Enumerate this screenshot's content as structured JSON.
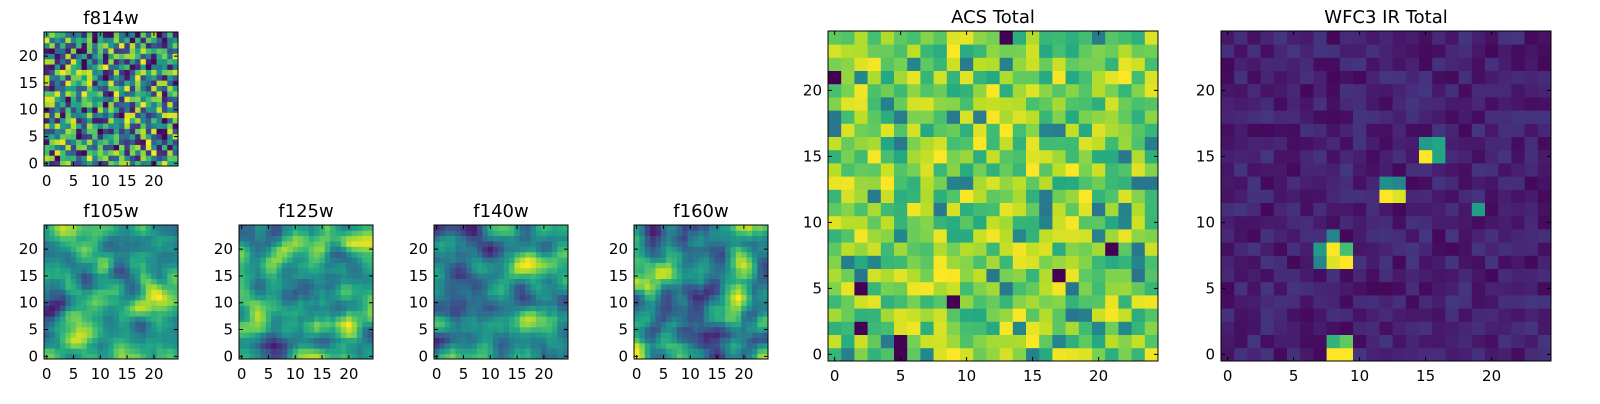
{
  "figure": {
    "panels": [
      {
        "key": "f814w",
        "title": "f814w",
        "type": "heatmap",
        "colormap": "viridis",
        "xticks": [
          "0",
          "5",
          "10",
          "15",
          "20"
        ],
        "yticks": [
          "0",
          "5",
          "10",
          "15",
          "20"
        ],
        "grid_size": 25,
        "value_range": [
          0,
          1
        ],
        "seed": 814,
        "style": "noise"
      },
      {
        "key": "f105w",
        "title": "f105w",
        "type": "heatmap",
        "colormap": "viridis",
        "xticks": [
          "0",
          "5",
          "10",
          "15",
          "20"
        ],
        "yticks": [
          "0",
          "5",
          "10",
          "15",
          "20"
        ],
        "grid_size": 25,
        "value_range": [
          0,
          1
        ],
        "seed": 105,
        "style": "smooth"
      },
      {
        "key": "f125w",
        "title": "f125w",
        "type": "heatmap",
        "colormap": "viridis",
        "xticks": [
          "0",
          "5",
          "10",
          "15",
          "20"
        ],
        "yticks": [
          "0",
          "5",
          "10",
          "15",
          "20"
        ],
        "grid_size": 25,
        "value_range": [
          0,
          1
        ],
        "seed": 125,
        "style": "smooth"
      },
      {
        "key": "f140w",
        "title": "f140w",
        "type": "heatmap",
        "colormap": "viridis",
        "xticks": [
          "0",
          "5",
          "10",
          "15",
          "20"
        ],
        "yticks": [
          "0",
          "5",
          "10",
          "15",
          "20"
        ],
        "grid_size": 25,
        "value_range": [
          0,
          1
        ],
        "seed": 140,
        "style": "smooth"
      },
      {
        "key": "f160w",
        "title": "f160w",
        "type": "heatmap",
        "colormap": "viridis",
        "xticks": [
          "0",
          "5",
          "10",
          "15",
          "20"
        ],
        "yticks": [
          "0",
          "5",
          "10",
          "15",
          "20"
        ],
        "grid_size": 25,
        "value_range": [
          0,
          1
        ],
        "seed": 160,
        "style": "smooth"
      },
      {
        "key": "acs_total",
        "title": "ACS Total",
        "type": "heatmap",
        "colormap": "viridis",
        "xticks": [
          "0",
          "5",
          "10",
          "15",
          "20"
        ],
        "yticks": [
          "0",
          "5",
          "10",
          "15",
          "20"
        ],
        "grid_size": 25,
        "value_range": [
          0,
          1
        ],
        "seed": 42,
        "style": "acs"
      },
      {
        "key": "wfc3_ir_total",
        "title": "WFC3 IR Total",
        "type": "heatmap",
        "colormap": "viridis",
        "xticks": [
          "0",
          "5",
          "10",
          "15",
          "20"
        ],
        "yticks": [
          "0",
          "5",
          "10",
          "15",
          "20"
        ],
        "grid_size": 25,
        "value_range": [
          0,
          1
        ],
        "seed": 7,
        "style": "sparse",
        "hot_pixels": [
          {
            "x": 8,
            "y": 0,
            "value": 1.0
          },
          {
            "x": 9,
            "y": 0,
            "value": 1.0
          },
          {
            "x": 8,
            "y": 1,
            "value": 0.65
          },
          {
            "x": 9,
            "y": 1,
            "value": 0.75
          },
          {
            "x": 7,
            "y": 7,
            "value": 0.45
          },
          {
            "x": 8,
            "y": 7,
            "value": 0.95
          },
          {
            "x": 9,
            "y": 7,
            "value": 1.0
          },
          {
            "x": 7,
            "y": 8,
            "value": 0.55
          },
          {
            "x": 8,
            "y": 8,
            "value": 1.0
          },
          {
            "x": 9,
            "y": 8,
            "value": 0.7
          },
          {
            "x": 8,
            "y": 9,
            "value": 0.45
          },
          {
            "x": 12,
            "y": 12,
            "value": 1.0
          },
          {
            "x": 13,
            "y": 12,
            "value": 0.95
          },
          {
            "x": 12,
            "y": 13,
            "value": 0.5
          },
          {
            "x": 13,
            "y": 13,
            "value": 0.45
          },
          {
            "x": 19,
            "y": 11,
            "value": 0.55
          },
          {
            "x": 15,
            "y": 15,
            "value": 1.0
          },
          {
            "x": 16,
            "y": 15,
            "value": 0.6
          },
          {
            "x": 15,
            "y": 16,
            "value": 0.55
          },
          {
            "x": 16,
            "y": 16,
            "value": 0.6
          }
        ]
      }
    ]
  }
}
